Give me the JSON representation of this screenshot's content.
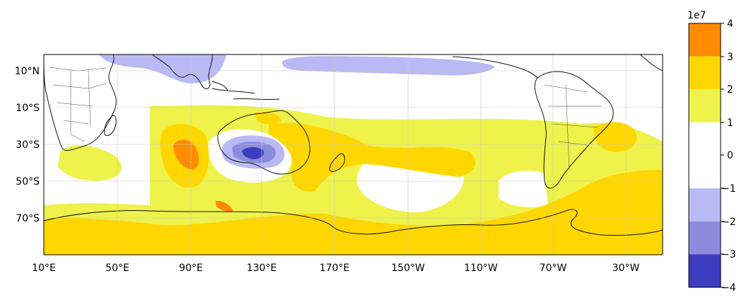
{
  "map": {
    "lon_ticks": [
      "10°E",
      "50°E",
      "90°E",
      "130°E",
      "170°E",
      "150°W",
      "110°W",
      "70°W",
      "30°W"
    ],
    "lat_ticks": [
      "10°N",
      "10°S",
      "30°S",
      "50°S",
      "70°S"
    ]
  },
  "colorbar": {
    "multiplier": "1e7",
    "ticks": [
      "4",
      "3",
      "2",
      "1",
      "0",
      "−1",
      "−2",
      "−3",
      "−4"
    ],
    "levels": [
      {
        "from": 3,
        "to": 4,
        "color": "#ff8c00"
      },
      {
        "from": 2,
        "to": 3,
        "color": "#ffd700"
      },
      {
        "from": 1,
        "to": 2,
        "color": "#eef24a"
      },
      {
        "from": -1,
        "to": 1,
        "color": "#ffffff"
      },
      {
        "from": -2,
        "to": -1,
        "color": "#b9b9f5"
      },
      {
        "from": -3,
        "to": -2,
        "color": "#8c8cde"
      },
      {
        "from": -4,
        "to": -3,
        "color": "#3c3cc0"
      }
    ]
  },
  "colors": {
    "positive_1": "#eef24a",
    "positive_2": "#ffd700",
    "positive_3": "#ff8c00",
    "negative_1": "#b9b9f5",
    "negative_2": "#8c8cde",
    "negative_3": "#3c3cc0"
  }
}
